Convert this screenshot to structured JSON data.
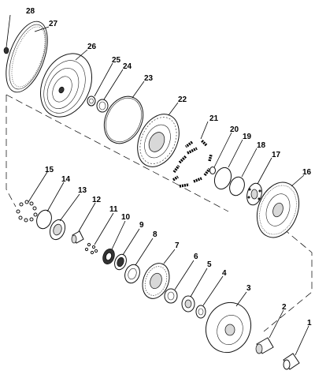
{
  "callouts": [
    {
      "num": "1"
    },
    {
      "num": "2"
    },
    {
      "num": "3"
    },
    {
      "num": "4"
    },
    {
      "num": "5"
    },
    {
      "num": "6"
    },
    {
      "num": "7"
    },
    {
      "num": "8"
    },
    {
      "num": "9"
    },
    {
      "num": "10"
    },
    {
      "num": "11"
    },
    {
      "num": "12"
    },
    {
      "num": "13"
    },
    {
      "num": "14"
    },
    {
      "num": "15"
    },
    {
      "num": "16"
    },
    {
      "num": "17"
    },
    {
      "num": "18"
    },
    {
      "num": "19"
    },
    {
      "num": "20"
    },
    {
      "num": "21"
    },
    {
      "num": "22"
    },
    {
      "num": "23"
    },
    {
      "num": "24"
    },
    {
      "num": "25"
    },
    {
      "num": "26"
    },
    {
      "num": "27"
    },
    {
      "num": "28"
    }
  ]
}
